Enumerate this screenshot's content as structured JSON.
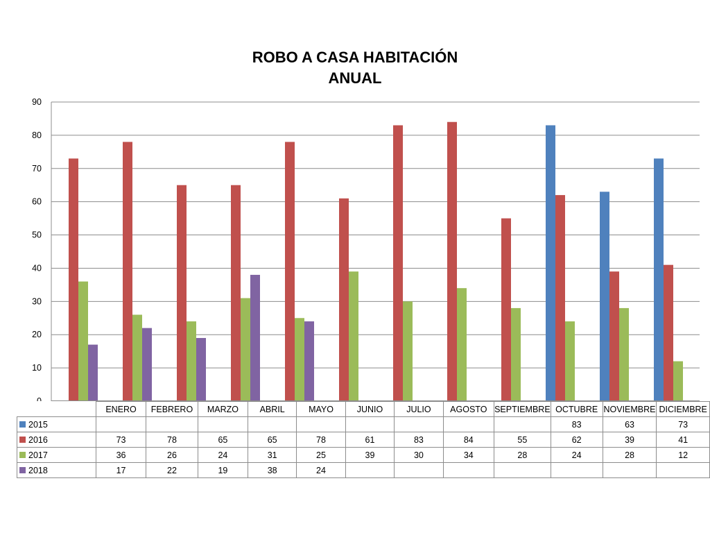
{
  "chart_data": {
    "type": "bar",
    "title": [
      "ROBO A CASA HABITACIÓN",
      "ANUAL"
    ],
    "xlabel": "",
    "ylabel": "",
    "ylim": [
      0,
      90
    ],
    "yticks": [
      0,
      10,
      20,
      30,
      40,
      50,
      60,
      70,
      80,
      90
    ],
    "grid": true,
    "legend": "data-table",
    "categories": [
      "ENERO",
      "FEBRERO",
      "MARZO",
      "ABRIL",
      "MAYO",
      "JUNIO",
      "JULIO",
      "AGOSTO",
      "SEPTIEMBRE",
      "OCTUBRE",
      "NOVIEMBRE",
      "DICIEMBRE"
    ],
    "series": [
      {
        "name": "2015",
        "color": "#4F81BD",
        "values": [
          null,
          null,
          null,
          null,
          null,
          null,
          null,
          null,
          null,
          83,
          63,
          73
        ]
      },
      {
        "name": "2016",
        "color": "#C0504D",
        "values": [
          73,
          78,
          65,
          65,
          78,
          61,
          83,
          84,
          55,
          62,
          39,
          41
        ]
      },
      {
        "name": "2017",
        "color": "#9BBB59",
        "values": [
          36,
          26,
          24,
          31,
          25,
          39,
          30,
          34,
          28,
          24,
          28,
          12
        ]
      },
      {
        "name": "2018",
        "color": "#8064A2",
        "values": [
          17,
          22,
          19,
          38,
          24,
          null,
          null,
          null,
          null,
          null,
          null,
          null
        ]
      }
    ]
  }
}
